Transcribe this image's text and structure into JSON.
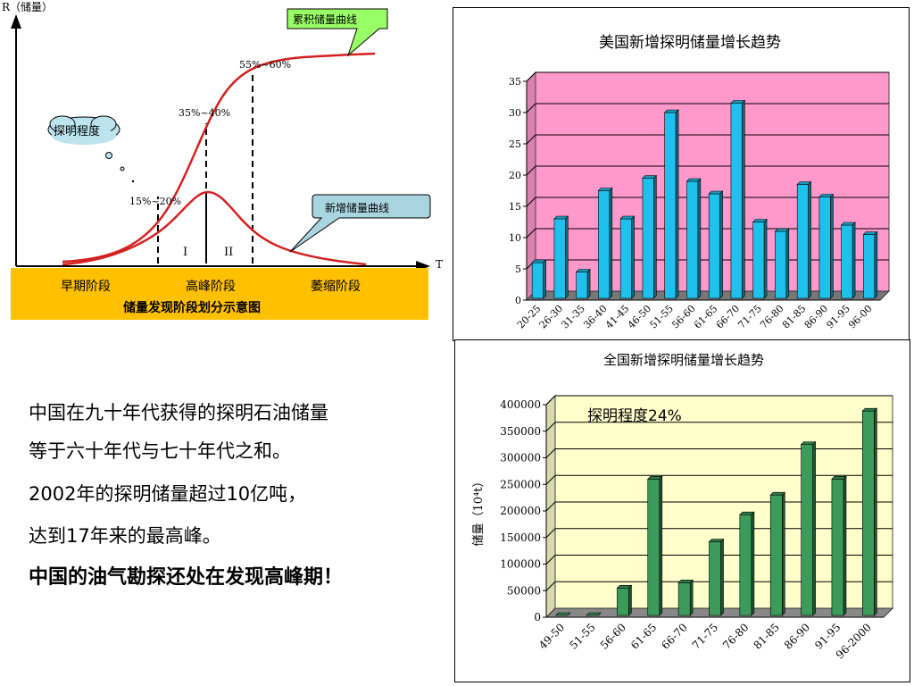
{
  "diagram": {
    "y_axis_label": "R（储量）",
    "x_axis_label": "T",
    "cumulative_callout": "累积储量曲线",
    "new_callout": "新增储量曲线",
    "degree_cloud": "探明程度",
    "pct_early": "15%~20%",
    "pct_peak": "35%~40%",
    "pct_late": "55%~60%",
    "region_1": "I",
    "region_2": "II",
    "stage_early": "早期阶段",
    "stage_peak": "高峰阶段",
    "stage_decline": "萎缩阶段",
    "caption": "储量发现阶段划分示意图",
    "colors": {
      "band": "#ffc000",
      "curve": "#d42020",
      "cumulative_callout_bg": "#99ff66",
      "new_callout_bg": "#a9d5e0",
      "cloud_bg": "#bde3ee"
    }
  },
  "text_block": {
    "line1": "中国在九十年代获得的探明石油储量",
    "line2": "等于六十年代与七十年代之和。",
    "line3": "2002年的探明储量超过10亿吨，",
    "line4": "达到17年来的最高峰。",
    "line5": "中国的油气勘探还处在发现高峰期！"
  },
  "chart_data": [
    {
      "type": "bar",
      "title": "美国新增探明储量增长趋势",
      "categories": [
        "20-25",
        "26-30",
        "31-35",
        "36-40",
        "41-45",
        "46-50",
        "51-55",
        "56-60",
        "61-65",
        "66-70",
        "71-75",
        "76-80",
        "81-85",
        "86-90",
        "91-95",
        "96-00"
      ],
      "values": [
        6,
        13,
        4.5,
        17.5,
        13,
        19.5,
        30,
        19,
        17,
        31.5,
        12.5,
        11,
        18.5,
        16.5,
        12,
        10.5
      ],
      "ylim": [
        0,
        35
      ],
      "yticks": [
        "0",
        "5",
        "10",
        "15",
        "20",
        "25",
        "30",
        "35"
      ],
      "grid": true,
      "colors": {
        "plot_bg": "#ff99cc",
        "bar": "#1ec0ec",
        "floor": "#777777"
      }
    },
    {
      "type": "bar",
      "title": "全国新增探明储量增长趋势",
      "ylabel": "储量（10⁴t）",
      "annotation_text": "探明程度",
      "annotation_value": "24%",
      "categories": [
        "49-50",
        "51-55",
        "56-60",
        "61-65",
        "66-70",
        "71-75",
        "76-80",
        "81-85",
        "86-90",
        "91-95",
        "96-2000"
      ],
      "values": [
        2000,
        2000,
        55000,
        260000,
        65000,
        142000,
        193000,
        230000,
        325000,
        260000,
        388000
      ],
      "ylim": [
        0,
        400000
      ],
      "yticks": [
        "0",
        "50000",
        "100000",
        "150000",
        "200000",
        "250000",
        "300000",
        "350000",
        "400000"
      ],
      "grid": true,
      "colors": {
        "plot_bg": "#ffffcc",
        "bar": "#3c9a5a",
        "floor": "#888888"
      }
    }
  ]
}
